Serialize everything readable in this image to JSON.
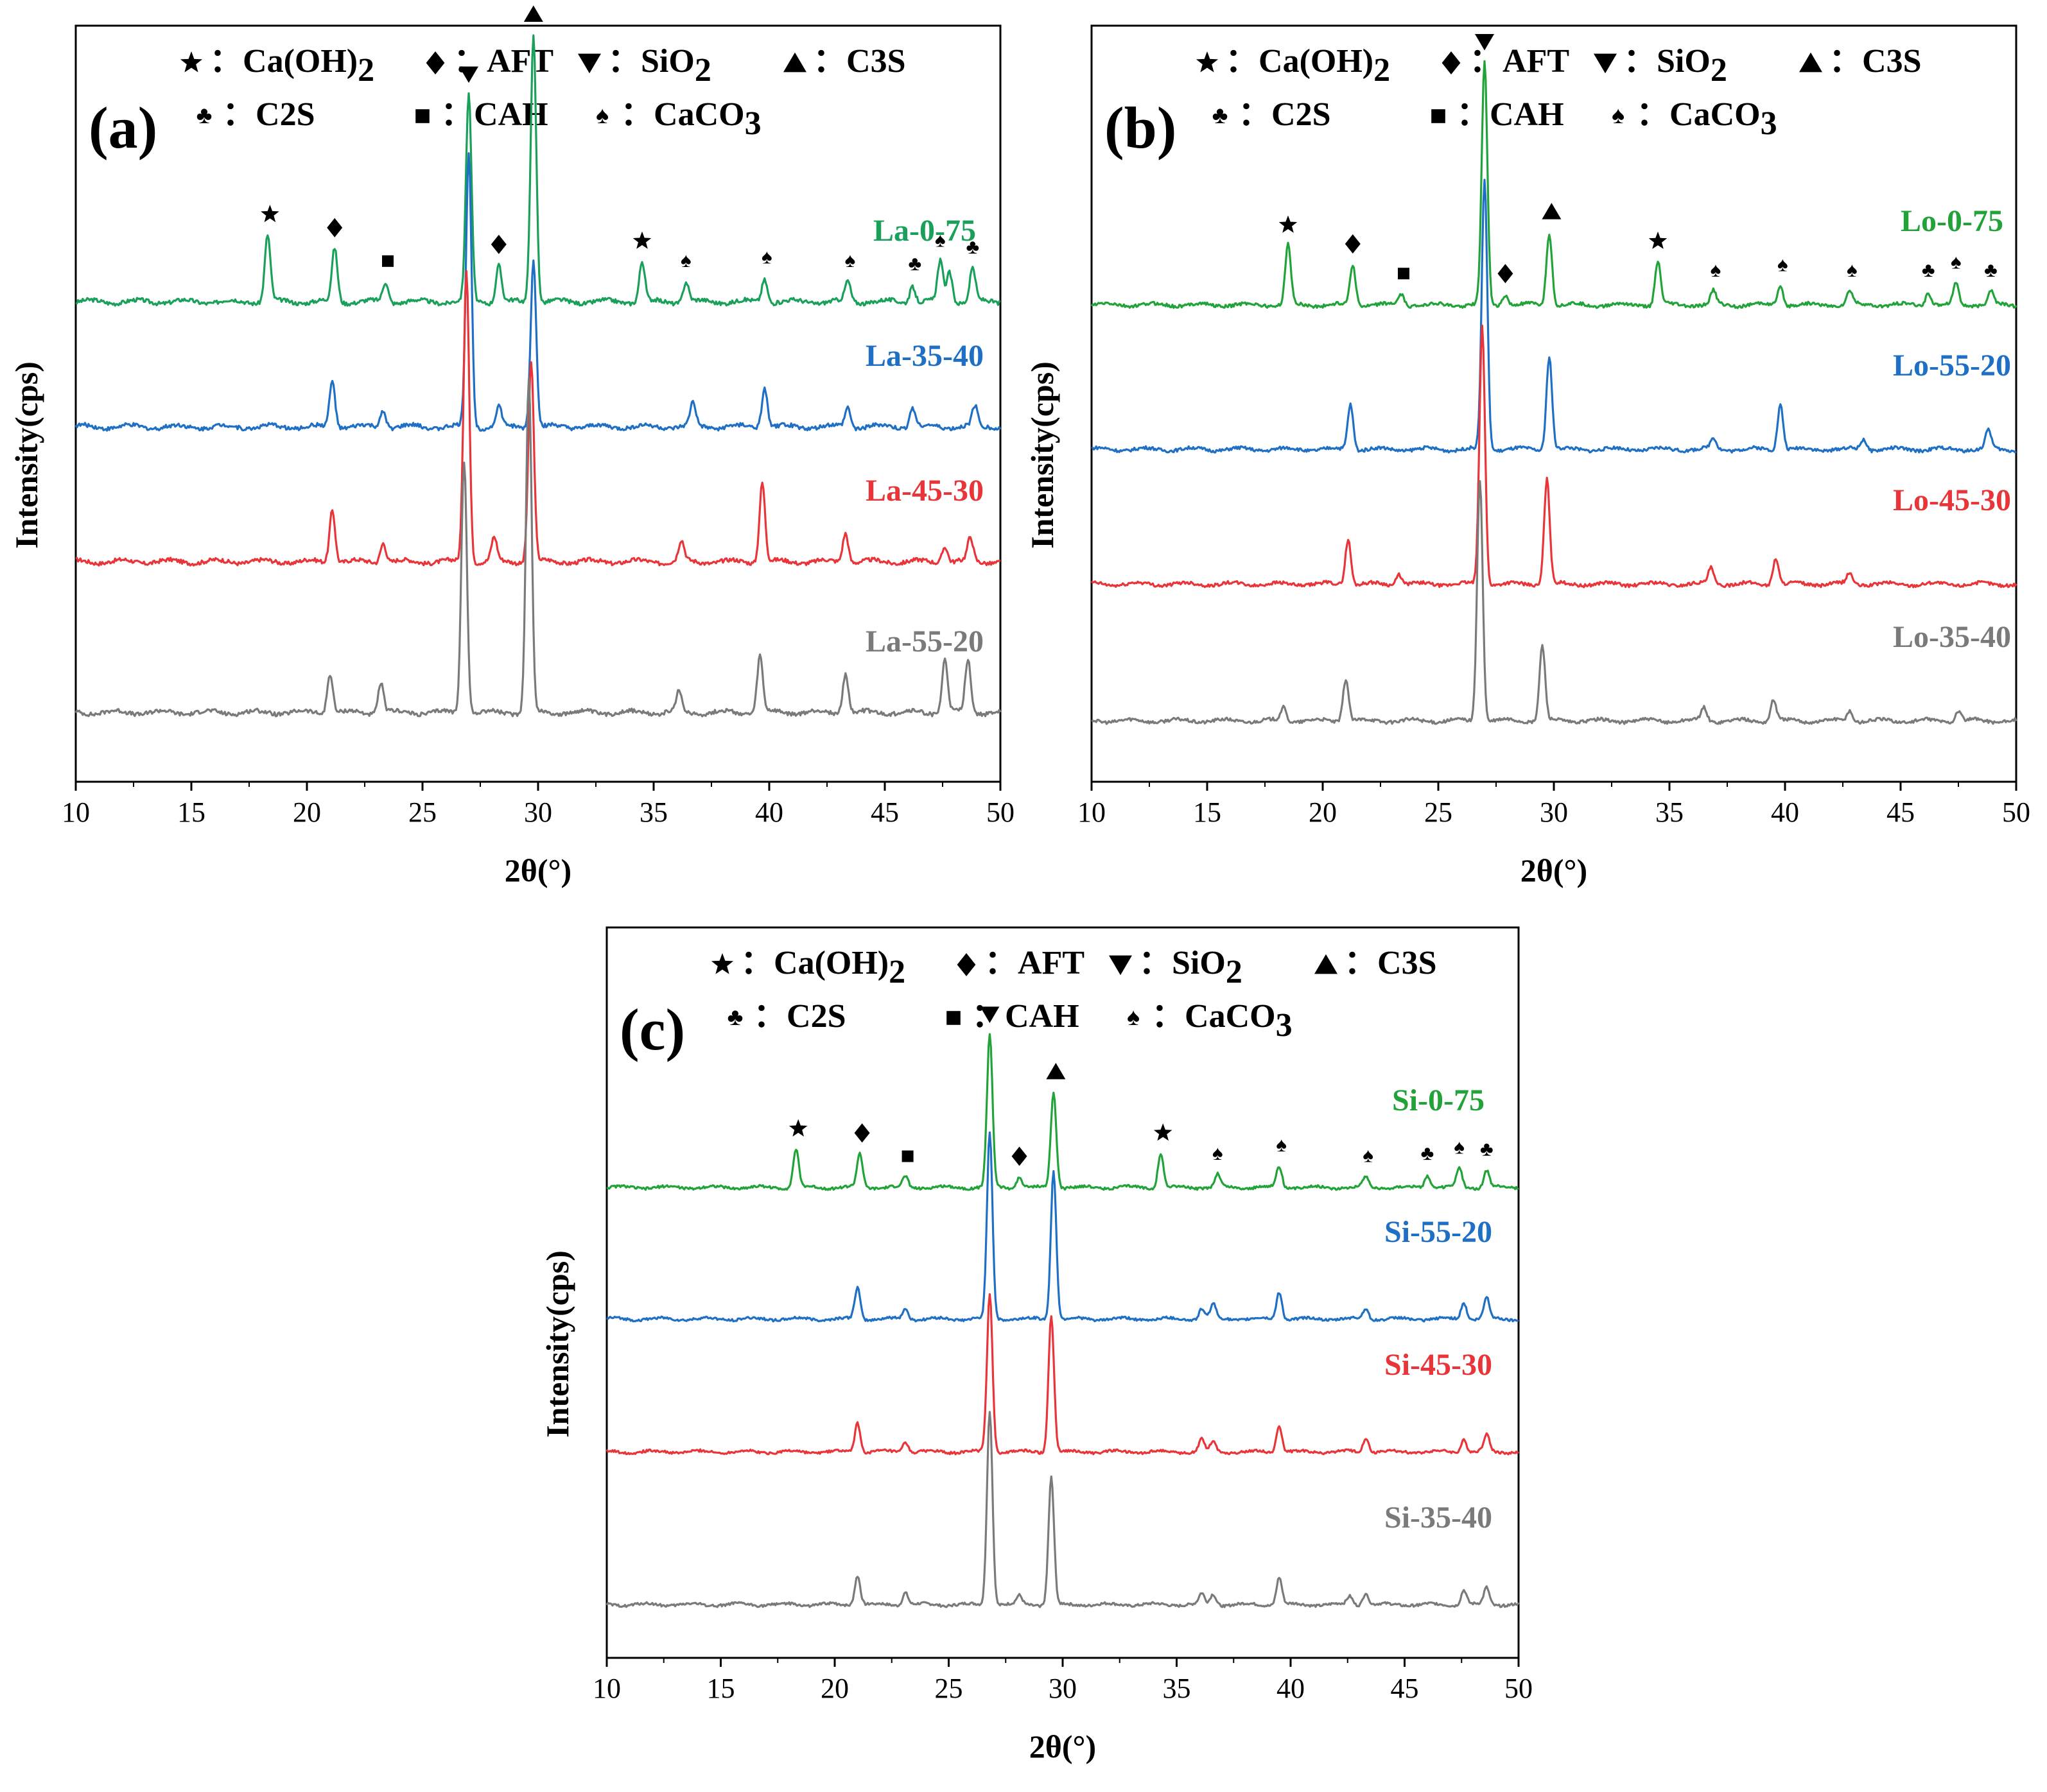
{
  "chart_data": [
    {
      "type": "line",
      "panel_label": "(a)",
      "xlabel": "2θ(°)",
      "ylabel": "Intensity(cps)",
      "xlim": [
        10,
        50
      ],
      "xticks": [
        "10",
        "15",
        "20",
        "25",
        "30",
        "35",
        "40",
        "45",
        "50"
      ],
      "legend": {
        "row1": [
          {
            "symbol": "★",
            "sep": "：",
            "label": "Ca(OH)",
            "sub": "2"
          },
          {
            "symbol": "◆",
            "sep": "：",
            "label": "AFT",
            "sub": ""
          },
          {
            "symbol": "▼",
            "sep": "：",
            "label": "SiO",
            "sub": "2"
          },
          {
            "symbol": "▲",
            "sep": "：",
            "label": "C3S",
            "sub": ""
          }
        ],
        "row2": [
          {
            "symbol": "♣",
            "sep": "：",
            "label": "C2S",
            "sub": ""
          },
          {
            "symbol": "■",
            "sep": "：",
            "label": "CAH",
            "sub": ""
          },
          {
            "symbol": "♠",
            "sep": "：",
            "label": "CaCO",
            "sub": "3"
          }
        ]
      },
      "series": [
        {
          "name": "La-0-75",
          "color": "#1aa05a",
          "peaks": [
            [
              18.3,
              0.2
            ],
            [
              21.2,
              0.16
            ],
            [
              23.4,
              0.06
            ],
            [
              27.0,
              0.62
            ],
            [
              28.3,
              0.11
            ],
            [
              29.8,
              0.8
            ],
            [
              34.5,
              0.12
            ],
            [
              36.4,
              0.06
            ],
            [
              39.8,
              0.07
            ],
            [
              43.4,
              0.06
            ],
            [
              46.2,
              0.05
            ],
            [
              47.4,
              0.12
            ],
            [
              47.8,
              0.09
            ],
            [
              48.8,
              0.1
            ]
          ]
        },
        {
          "name": "La-35-40",
          "color": "#1f6fc5",
          "peaks": [
            [
              21.1,
              0.14
            ],
            [
              23.3,
              0.05
            ],
            [
              27.0,
              0.82
            ],
            [
              28.3,
              0.06
            ],
            [
              29.8,
              0.5
            ],
            [
              36.7,
              0.07
            ],
            [
              39.8,
              0.12
            ],
            [
              43.4,
              0.06
            ],
            [
              46.2,
              0.06
            ],
            [
              48.9,
              0.06
            ]
          ]
        },
        {
          "name": "La-45-30",
          "color": "#e8353a",
          "peaks": [
            [
              21.1,
              0.16
            ],
            [
              23.3,
              0.06
            ],
            [
              26.9,
              0.88
            ],
            [
              28.1,
              0.07
            ],
            [
              29.7,
              0.6
            ],
            [
              36.2,
              0.06
            ],
            [
              39.7,
              0.24
            ],
            [
              43.3,
              0.09
            ],
            [
              47.6,
              0.05
            ],
            [
              48.7,
              0.07
            ]
          ]
        },
        {
          "name": "La-55-20",
          "color": "#7a7a7a",
          "peaks": [
            [
              21.0,
              0.12
            ],
            [
              23.2,
              0.09
            ],
            [
              26.8,
              0.76
            ],
            [
              29.6,
              1.0
            ],
            [
              36.1,
              0.06
            ],
            [
              39.6,
              0.17
            ],
            [
              43.3,
              0.12
            ],
            [
              47.6,
              0.16
            ],
            [
              48.6,
              0.16
            ]
          ]
        }
      ],
      "markers": [
        {
          "symbol": "★",
          "x": 18.4
        },
        {
          "symbol": "◆",
          "x": 21.2
        },
        {
          "symbol": "■",
          "x": 23.5
        },
        {
          "symbol": "▼",
          "x": 27.0
        },
        {
          "symbol": "◆",
          "x": 28.3
        },
        {
          "symbol": "▲",
          "x": 29.8
        },
        {
          "symbol": "★",
          "x": 34.5
        },
        {
          "symbol": "♠",
          "x": 36.4
        },
        {
          "symbol": "♠",
          "x": 39.9
        },
        {
          "symbol": "♠",
          "x": 43.5
        },
        {
          "symbol": "♣",
          "x": 46.3
        },
        {
          "symbol": "♠",
          "x": 47.4
        },
        {
          "symbol": "♣",
          "x": 48.8
        }
      ]
    },
    {
      "type": "line",
      "panel_label": "(b)",
      "xlabel": "2θ(°)",
      "ylabel": "Intensity(cps)",
      "xlim": [
        10,
        50
      ],
      "xticks": [
        "10",
        "15",
        "20",
        "25",
        "30",
        "35",
        "40",
        "45",
        "50"
      ],
      "legend": {
        "row1": [
          {
            "symbol": "★",
            "sep": "：",
            "label": "Ca(OH)",
            "sub": "2"
          },
          {
            "symbol": "◆",
            "sep": "：",
            "label": "AFT",
            "sub": ""
          },
          {
            "symbol": "▼",
            "sep": "：",
            "label": "SiO",
            "sub": "2"
          },
          {
            "symbol": "▲",
            "sep": "：",
            "label": "C3S",
            "sub": ""
          }
        ],
        "row2": [
          {
            "symbol": "♣",
            "sep": "：",
            "label": "C2S",
            "sub": ""
          },
          {
            "symbol": "■",
            "sep": "：",
            "label": "CAH",
            "sub": ""
          },
          {
            "symbol": "♠",
            "sep": "：",
            "label": "CaCO",
            "sub": "3"
          }
        ]
      },
      "series": [
        {
          "name": "Lo-0-75",
          "color": "#22a33a",
          "peaks": [
            [
              18.5,
              0.22
            ],
            [
              21.3,
              0.15
            ],
            [
              23.4,
              0.04
            ],
            [
              27.0,
              0.9
            ],
            [
              27.9,
              0.04
            ],
            [
              29.8,
              0.27
            ],
            [
              34.5,
              0.16
            ],
            [
              36.9,
              0.05
            ],
            [
              39.8,
              0.07
            ],
            [
              42.8,
              0.05
            ],
            [
              46.2,
              0.05
            ],
            [
              47.4,
              0.08
            ],
            [
              48.9,
              0.05
            ]
          ]
        },
        {
          "name": "Lo-55-20",
          "color": "#1f6fc5",
          "peaks": [
            [
              21.2,
              0.17
            ],
            [
              27.0,
              1.0
            ],
            [
              29.8,
              0.35
            ],
            [
              36.9,
              0.04
            ],
            [
              39.8,
              0.17
            ],
            [
              43.4,
              0.04
            ],
            [
              48.8,
              0.07
            ]
          ]
        },
        {
          "name": "Lo-45-30",
          "color": "#e8353a",
          "peaks": [
            [
              21.1,
              0.17
            ],
            [
              23.3,
              0.04
            ],
            [
              26.9,
              0.96
            ],
            [
              29.7,
              0.39
            ],
            [
              36.8,
              0.06
            ],
            [
              39.6,
              0.1
            ],
            [
              42.8,
              0.04
            ]
          ]
        },
        {
          "name": "Lo-35-40",
          "color": "#7a7a7a",
          "peaks": [
            [
              18.3,
              0.05
            ],
            [
              21.0,
              0.16
            ],
            [
              26.8,
              0.9
            ],
            [
              29.5,
              0.28
            ],
            [
              36.5,
              0.05
            ],
            [
              39.5,
              0.08
            ],
            [
              42.8,
              0.04
            ],
            [
              47.5,
              0.04
            ]
          ]
        }
      ],
      "markers": [
        {
          "symbol": "★",
          "x": 18.5
        },
        {
          "symbol": "◆",
          "x": 21.3
        },
        {
          "symbol": "■",
          "x": 23.5
        },
        {
          "symbol": "▼",
          "x": 27.0
        },
        {
          "symbol": "◆",
          "x": 27.9
        },
        {
          "symbol": "▲",
          "x": 29.9
        },
        {
          "symbol": "★",
          "x": 34.5
        },
        {
          "symbol": "♠",
          "x": 37.0
        },
        {
          "symbol": "♠",
          "x": 39.9
        },
        {
          "symbol": "♠",
          "x": 42.9
        },
        {
          "symbol": "♣",
          "x": 46.2
        },
        {
          "symbol": "♠",
          "x": 47.4
        },
        {
          "symbol": "♣",
          "x": 48.9
        }
      ]
    },
    {
      "type": "line",
      "panel_label": "(c)",
      "xlabel": "2θ(°)",
      "ylabel": "Intensity(cps)",
      "xlim": [
        10,
        50
      ],
      "xticks": [
        "10",
        "15",
        "20",
        "25",
        "30",
        "35",
        "40",
        "45",
        "50"
      ],
      "legend": {
        "row1": [
          {
            "symbol": "★",
            "sep": "：",
            "label": "Ca(OH)",
            "sub": "2"
          },
          {
            "symbol": "◆",
            "sep": "：",
            "label": "AFT",
            "sub": ""
          },
          {
            "symbol": "▼",
            "sep": "：",
            "label": "SiO",
            "sub": "2"
          },
          {
            "symbol": "▲",
            "sep": "：",
            "label": "C3S",
            "sub": ""
          }
        ],
        "row2": [
          {
            "symbol": "♣",
            "sep": "：",
            "label": "C2S",
            "sub": ""
          },
          {
            "symbol": "■",
            "sep": "：",
            "label": "CAH",
            "sub": ""
          },
          {
            "symbol": "♠",
            "sep": "：",
            "label": "CaCO",
            "sub": "3"
          }
        ]
      },
      "series": [
        {
          "name": "Si-0-75",
          "color": "#22a33a",
          "peaks": [
            [
              18.3,
              0.18
            ],
            [
              21.1,
              0.16
            ],
            [
              23.1,
              0.05
            ],
            [
              26.8,
              0.72
            ],
            [
              28.1,
              0.05
            ],
            [
              29.6,
              0.45
            ],
            [
              34.3,
              0.16
            ],
            [
              36.8,
              0.06
            ],
            [
              39.5,
              0.1
            ],
            [
              43.3,
              0.05
            ],
            [
              46.0,
              0.06
            ],
            [
              47.4,
              0.09
            ],
            [
              48.6,
              0.08
            ]
          ]
        },
        {
          "name": "Si-55-20",
          "color": "#1f6fc5",
          "peaks": [
            [
              21.0,
              0.15
            ],
            [
              23.1,
              0.05
            ],
            [
              26.8,
              0.88
            ],
            [
              29.6,
              0.7
            ],
            [
              36.1,
              0.05
            ],
            [
              36.6,
              0.07
            ],
            [
              39.5,
              0.13
            ],
            [
              43.3,
              0.05
            ],
            [
              47.6,
              0.08
            ],
            [
              48.6,
              0.1
            ]
          ]
        },
        {
          "name": "Si-45-30",
          "color": "#e8353a",
          "peaks": [
            [
              21.0,
              0.14
            ],
            [
              23.1,
              0.05
            ],
            [
              26.8,
              0.75
            ],
            [
              29.5,
              0.65
            ],
            [
              36.1,
              0.06
            ],
            [
              36.6,
              0.05
            ],
            [
              39.5,
              0.13
            ],
            [
              43.3,
              0.07
            ],
            [
              47.6,
              0.06
            ],
            [
              48.6,
              0.08
            ]
          ]
        },
        {
          "name": "Si-35-40",
          "color": "#7a7a7a",
          "peaks": [
            [
              21.0,
              0.14
            ],
            [
              23.1,
              0.06
            ],
            [
              26.8,
              0.92
            ],
            [
              28.1,
              0.04
            ],
            [
              29.5,
              0.6
            ],
            [
              36.1,
              0.05
            ],
            [
              36.6,
              0.05
            ],
            [
              39.5,
              0.13
            ],
            [
              42.6,
              0.04
            ],
            [
              43.3,
              0.06
            ],
            [
              47.6,
              0.07
            ],
            [
              48.6,
              0.08
            ]
          ]
        }
      ],
      "markers": [
        {
          "symbol": "★",
          "x": 18.4
        },
        {
          "symbol": "◆",
          "x": 21.2
        },
        {
          "symbol": "■",
          "x": 23.2
        },
        {
          "symbol": "▼",
          "x": 26.8
        },
        {
          "symbol": "◆",
          "x": 28.1
        },
        {
          "symbol": "▲",
          "x": 29.7
        },
        {
          "symbol": "★",
          "x": 34.4
        },
        {
          "symbol": "♠",
          "x": 36.8
        },
        {
          "symbol": "♠",
          "x": 39.6
        },
        {
          "symbol": "♠",
          "x": 43.4
        },
        {
          "symbol": "♣",
          "x": 46.0
        },
        {
          "symbol": "♠",
          "x": 47.4
        },
        {
          "symbol": "♣",
          "x": 48.6
        }
      ]
    }
  ]
}
